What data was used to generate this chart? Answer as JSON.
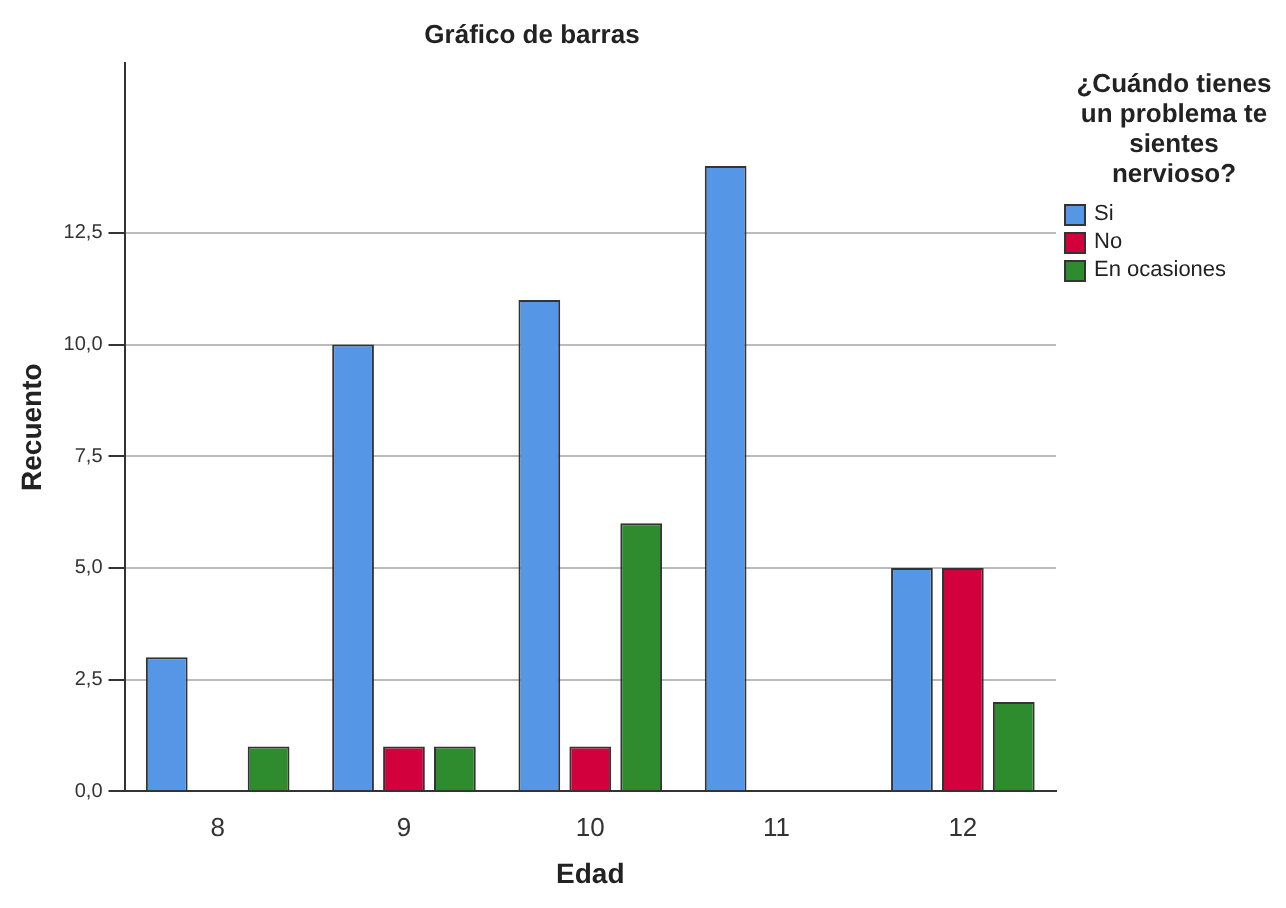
{
  "chart_data": {
    "type": "bar",
    "title": "Gráfico de barras",
    "xlabel": "Edad",
    "ylabel": "Recuento",
    "legend_title": "¿Cuándo tienes un problema te sientes nervioso?",
    "categories": [
      "8",
      "9",
      "10",
      "11",
      "12"
    ],
    "series": [
      {
        "name": "Si",
        "color": "#5596e6",
        "values": [
          3,
          10,
          11,
          14,
          5
        ]
      },
      {
        "name": "No",
        "color": "#d2003c",
        "values": [
          null,
          1,
          1,
          null,
          5
        ]
      },
      {
        "name": "En ocasiones",
        "color": "#2e8b2e",
        "values": [
          1,
          1,
          6,
          null,
          2
        ]
      }
    ],
    "ylim": [
      0,
      16.3
    ],
    "yticks": [
      {
        "value": 0,
        "label": "0,0"
      },
      {
        "value": 2.5,
        "label": "2,5"
      },
      {
        "value": 5,
        "label": "5,0"
      },
      {
        "value": 7.5,
        "label": "7,5"
      },
      {
        "value": 10,
        "label": "10,0"
      },
      {
        "value": 12.5,
        "label": "12,5"
      }
    ],
    "grid": "y",
    "legend": "top right"
  }
}
